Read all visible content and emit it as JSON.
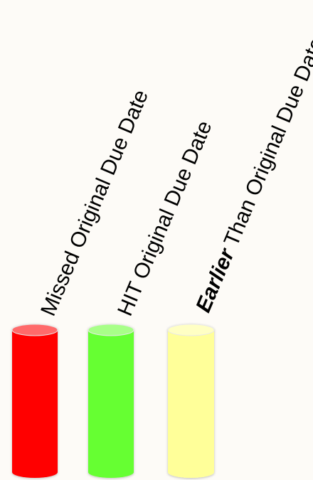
{
  "legend": {
    "items": [
      {
        "label": "Missed Original Due Date",
        "color": "#ff0000",
        "top_color": "#ff6b6b"
      },
      {
        "label": "HIT Original Due Date",
        "color": "#66ff33",
        "top_color": "#a8ff88"
      },
      {
        "emphasis": "Earlier",
        "label": " Than Original Due Date",
        "color": "#ffff99",
        "top_color": "#ffffc4"
      }
    ]
  }
}
